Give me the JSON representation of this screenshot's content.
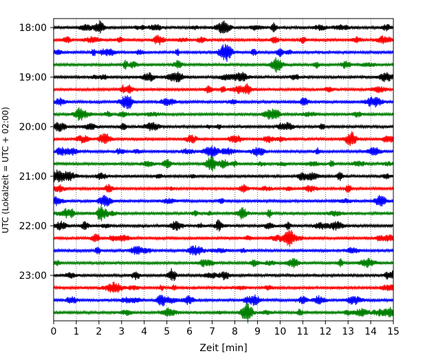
{
  "chart_data": {
    "type": "line",
    "title": "",
    "xlabel": "Zeit  [min]",
    "ylabel": "UTC (Lokalzeit = UTC + 02:00)",
    "xlim": [
      0,
      15
    ],
    "x_ticks": [
      "0",
      "1",
      "2",
      "3",
      "4",
      "5",
      "6",
      "7",
      "8",
      "9",
      "10",
      "11",
      "12",
      "13",
      "14",
      "15"
    ],
    "y_tick_labels": [
      "18:00",
      "19:00",
      "20:00",
      "21:00",
      "22:00",
      "23:00"
    ],
    "y_ticks_at_trace": [
      0,
      4,
      8,
      12,
      16,
      20
    ],
    "grid": "vertical dotted at each minute",
    "trace_interval_min": 15,
    "series": [
      {
        "start": "18:00",
        "color": "#000000"
      },
      {
        "start": "18:15",
        "color": "#ff0000"
      },
      {
        "start": "18:30",
        "color": "#0000ff"
      },
      {
        "start": "18:45",
        "color": "#008000"
      },
      {
        "start": "19:00",
        "color": "#000000"
      },
      {
        "start": "19:15",
        "color": "#ff0000"
      },
      {
        "start": "19:30",
        "color": "#0000ff"
      },
      {
        "start": "19:45",
        "color": "#008000"
      },
      {
        "start": "20:00",
        "color": "#000000"
      },
      {
        "start": "20:15",
        "color": "#ff0000"
      },
      {
        "start": "20:30",
        "color": "#0000ff"
      },
      {
        "start": "20:45",
        "color": "#008000"
      },
      {
        "start": "21:00",
        "color": "#000000"
      },
      {
        "start": "21:15",
        "color": "#ff0000"
      },
      {
        "start": "21:30",
        "color": "#0000ff"
      },
      {
        "start": "21:45",
        "color": "#008000"
      },
      {
        "start": "22:00",
        "color": "#000000"
      },
      {
        "start": "22:15",
        "color": "#ff0000"
      },
      {
        "start": "22:30",
        "color": "#0000ff"
      },
      {
        "start": "22:45",
        "color": "#008000"
      },
      {
        "start": "23:00",
        "color": "#000000"
      },
      {
        "start": "23:15",
        "color": "#ff0000"
      },
      {
        "start": "23:30",
        "color": "#0000ff"
      },
      {
        "start": "23:45",
        "color": "#008000"
      }
    ]
  }
}
